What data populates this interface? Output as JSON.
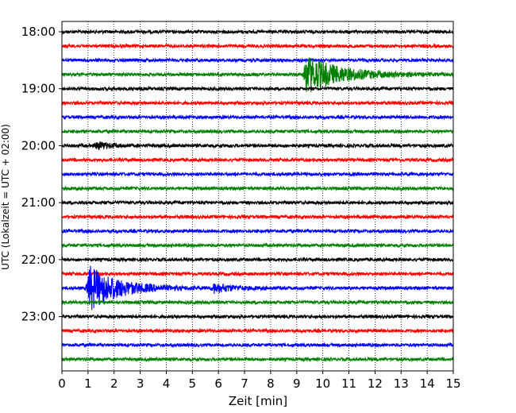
{
  "chart_data": {
    "type": "line",
    "title": "",
    "xlabel": "Zeit  [min]",
    "ylabel": "UTC (Lokalzeit = UTC + 02:00)",
    "xlim": [
      0,
      15
    ],
    "x_ticks": [
      "0",
      "1",
      "2",
      "3",
      "4",
      "5",
      "6",
      "7",
      "8",
      "9",
      "10",
      "11",
      "12",
      "13",
      "14",
      "15"
    ],
    "y_ticks": [
      "18:00",
      "19:00",
      "20:00",
      "21:00",
      "22:00",
      "23:00"
    ],
    "grid": "vertical-dotted",
    "trace_colors": [
      "#000000",
      "#ff0000",
      "#0000ff",
      "#008000"
    ],
    "trace_interval_min": 15,
    "traces": [
      {
        "start": "18:00",
        "color": "#000000",
        "amplitude": 0.28
      },
      {
        "start": "18:15",
        "color": "#ff0000",
        "amplitude": 0.28
      },
      {
        "start": "18:30",
        "color": "#0000ff",
        "amplitude": 0.28
      },
      {
        "start": "18:45",
        "color": "#008000",
        "amplitude": 0.28,
        "events": [
          {
            "minute": 9.3,
            "peak": 3.6,
            "decay_min": 1.3
          }
        ]
      },
      {
        "start": "19:00",
        "color": "#000000",
        "amplitude": 0.28
      },
      {
        "start": "19:15",
        "color": "#ff0000",
        "amplitude": 0.28
      },
      {
        "start": "19:30",
        "color": "#0000ff",
        "amplitude": 0.28
      },
      {
        "start": "19:45",
        "color": "#008000",
        "amplitude": 0.28
      },
      {
        "start": "20:00",
        "color": "#000000",
        "amplitude": 0.3,
        "events": [
          {
            "minute": 1.3,
            "peak": 0.7,
            "decay_min": 0.5
          }
        ]
      },
      {
        "start": "20:15",
        "color": "#ff0000",
        "amplitude": 0.28
      },
      {
        "start": "20:30",
        "color": "#0000ff",
        "amplitude": 0.28
      },
      {
        "start": "20:45",
        "color": "#008000",
        "amplitude": 0.28
      },
      {
        "start": "21:00",
        "color": "#000000",
        "amplitude": 0.28
      },
      {
        "start": "21:15",
        "color": "#ff0000",
        "amplitude": 0.28
      },
      {
        "start": "21:30",
        "color": "#0000ff",
        "amplitude": 0.28
      },
      {
        "start": "21:45",
        "color": "#008000",
        "amplitude": 0.28
      },
      {
        "start": "22:00",
        "color": "#000000",
        "amplitude": 0.28
      },
      {
        "start": "22:15",
        "color": "#ff0000",
        "amplitude": 0.28
      },
      {
        "start": "22:30",
        "color": "#0000ff",
        "amplitude": 0.28,
        "events": [
          {
            "minute": 1.0,
            "peak": 4.2,
            "decay_min": 1.1
          },
          {
            "minute": 5.8,
            "peak": 0.8,
            "decay_min": 0.7
          }
        ]
      },
      {
        "start": "22:45",
        "color": "#008000",
        "amplitude": 0.28
      },
      {
        "start": "23:00",
        "color": "#000000",
        "amplitude": 0.28
      },
      {
        "start": "23:15",
        "color": "#ff0000",
        "amplitude": 0.28
      },
      {
        "start": "23:30",
        "color": "#0000ff",
        "amplitude": 0.28
      },
      {
        "start": "23:45",
        "color": "#008000",
        "amplitude": 0.28
      }
    ]
  }
}
